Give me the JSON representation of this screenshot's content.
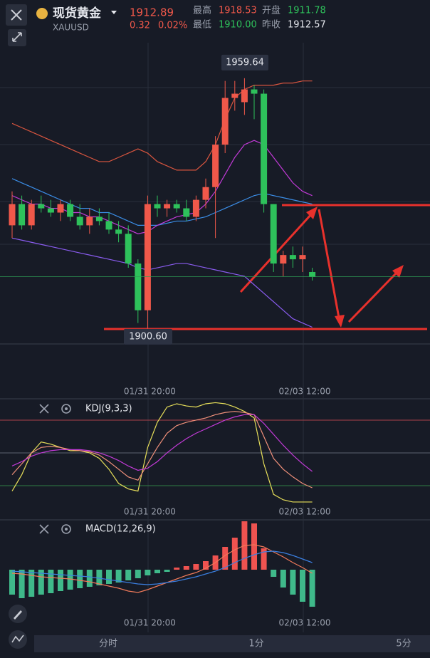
{
  "header": {
    "symbol_name": "现货黄金",
    "symbol_code": "XAUUSD",
    "price": "1912.89",
    "change": "0.32",
    "change_pct": "0.02%",
    "stats": [
      {
        "label": "最高",
        "value": "1918.53",
        "color": "#f0584a"
      },
      {
        "label": "开盘",
        "value": "1911.78",
        "color": "#2ec15b"
      },
      {
        "label": "最低",
        "value": "1910.00",
        "color": "#2ec15b"
      },
      {
        "label": "昨收",
        "value": "1912.57",
        "color": "#e6e8ee"
      }
    ]
  },
  "toolbar": {
    "periods": [
      "分时",
      "1分",
      "5分"
    ]
  },
  "chart_data": [
    {
      "type": "candlestick",
      "up_color": "#f0584a",
      "down_color": "#2ec15b",
      "ylim": [
        1887.5,
        1968
      ],
      "categories": [
        null,
        null,
        null,
        null,
        null,
        null,
        null,
        null,
        null,
        null,
        null,
        null,
        null,
        null,
        "01/31 20:00",
        null,
        null,
        null,
        null,
        null,
        null,
        null,
        null,
        null,
        null,
        null,
        null,
        null,
        null,
        null,
        "02/03 12:00",
        null
      ],
      "open": [
        1925,
        1930,
        1925,
        1930,
        1929,
        1928,
        1930,
        1927,
        1925,
        1927,
        1926,
        1924,
        1923,
        1916,
        1905,
        1930,
        1929,
        1930,
        1929,
        1927,
        1931,
        1934,
        1944,
        1955,
        1954,
        1957,
        1956,
        1930,
        1916,
        1918,
        1917,
        1914
      ],
      "high": [
        1933,
        1932,
        1931,
        1932,
        1931,
        1931,
        1931,
        1930,
        1929,
        1929,
        1928,
        1926,
        1925,
        1917,
        1932,
        1932,
        1931,
        1931,
        1931,
        1932,
        1936,
        1946,
        1959,
        1959,
        1959.64,
        1958,
        1957,
        1930,
        1919,
        1920,
        1920,
        1915
      ],
      "low": [
        1922,
        1924,
        1924,
        1928,
        1927,
        1926,
        1926,
        1924,
        1923,
        1925,
        1923,
        1921,
        1915,
        1902,
        1900.6,
        1927,
        1927,
        1928,
        1926,
        1926,
        1929,
        1922,
        1942,
        1952,
        1951,
        1950,
        1928,
        1914,
        1913,
        1915,
        1914,
        1912
      ],
      "close": [
        1930,
        1925,
        1930,
        1929,
        1928,
        1930,
        1927,
        1925,
        1927,
        1926,
        1924,
        1923,
        1916,
        1905,
        1930,
        1929,
        1930,
        1929,
        1927,
        1931,
        1934,
        1944,
        1955,
        1956,
        1957,
        1956,
        1930,
        1916,
        1918,
        1917,
        1918,
        1912.89
      ],
      "lines": [
        {
          "color": "#d9553f",
          "values": [
            1949,
            1948,
            1947,
            1946,
            1945,
            1944,
            1943,
            1942,
            1941,
            1940,
            1940,
            1941,
            1942,
            1943,
            1942,
            1940,
            1939,
            1938,
            1938,
            1938,
            1940,
            1944,
            1950,
            1955,
            1957,
            1958,
            1958,
            1958,
            1958.5,
            1958.5,
            1959,
            1959
          ]
        },
        {
          "color": "#3b8ee8",
          "values": [
            1936,
            1935,
            1934,
            1933,
            1932,
            1931,
            1930,
            1929,
            1929,
            1928,
            1928,
            1927,
            1926,
            1925,
            1925,
            1925,
            1925.5,
            1926,
            1926,
            1926.5,
            1927,
            1928,
            1929,
            1930,
            1931,
            1932,
            1932.5,
            1932,
            1931.5,
            1931,
            1930.5,
            1930
          ]
        },
        {
          "color": "#8a5cf0",
          "values": [
            1922,
            1921.5,
            1921,
            1920.5,
            1920,
            1919.5,
            1919,
            1918.5,
            1918,
            1917.5,
            1917,
            1916.5,
            1916,
            1915,
            1914.5,
            1915,
            1915.5,
            1916,
            1916,
            1915.5,
            1915,
            1914.5,
            1914,
            1913.5,
            1913,
            1911,
            1909,
            1907,
            1905,
            1903,
            1902,
            1901
          ]
        },
        {
          "color": "#c13ad6",
          "values": [
            1932,
            1931,
            1930,
            1930,
            1929,
            1929,
            1928,
            1928,
            1927,
            1927,
            1926,
            1925,
            1924,
            1923,
            1923.5,
            1925,
            1926,
            1927,
            1927.5,
            1928,
            1930,
            1933,
            1937,
            1941,
            1944,
            1945,
            1944,
            1941,
            1938,
            1935,
            1933,
            1932
          ]
        }
      ],
      "high_label": 1959.64,
      "low_label": {
        "value": 1900.6,
        "label": "1900.60"
      }
    },
    {
      "type": "line",
      "title": "KDJ(9,3,3)",
      "ylim": [
        -9.4,
        97.6
      ],
      "categories": [
        null,
        null,
        null,
        null,
        null,
        null,
        null,
        null,
        null,
        null,
        null,
        null,
        null,
        null,
        "01/31 20:00",
        null,
        null,
        null,
        null,
        null,
        null,
        null,
        null,
        null,
        null,
        null,
        null,
        null,
        null,
        null,
        "02/03 12:00",
        null
      ],
      "hlines": [
        {
          "value": 80,
          "color": "#a8414b"
        },
        {
          "value": 50,
          "color": "#5d6370"
        },
        {
          "value": 20,
          "color": "#2f7d44"
        }
      ],
      "series": [
        {
          "color": "#e8e05a",
          "values": [
            15,
            30,
            50,
            60,
            58,
            55,
            52,
            52,
            50,
            45,
            35,
            22,
            17,
            15,
            55,
            78,
            92,
            95,
            93,
            92,
            95,
            96,
            95,
            92,
            88,
            82,
            40,
            12,
            7,
            5,
            5,
            5
          ]
        },
        {
          "color": "#f0907a",
          "values": [
            30,
            40,
            50,
            55,
            56,
            55,
            53,
            52,
            51,
            48,
            42,
            35,
            28,
            25,
            40,
            55,
            68,
            75,
            78,
            80,
            82,
            85,
            87,
            88,
            87,
            85,
            65,
            45,
            35,
            28,
            22,
            18
          ]
        },
        {
          "color": "#c13ad6",
          "values": [
            38,
            42,
            47,
            50,
            52,
            53,
            53,
            53,
            52,
            50,
            47,
            43,
            38,
            34,
            36,
            42,
            50,
            57,
            63,
            68,
            72,
            76,
            80,
            83,
            85,
            85,
            77,
            67,
            57,
            48,
            40,
            33
          ]
        }
      ]
    },
    {
      "type": "bar",
      "title": "MACD(12,26,9)",
      "ylim": [
        -6,
        6.5
      ],
      "up_color": "#ef5350",
      "down_color": "#3fb98a",
      "categories": [
        null,
        null,
        null,
        null,
        null,
        null,
        null,
        null,
        null,
        null,
        null,
        null,
        null,
        null,
        "01/31 20:00",
        null,
        null,
        null,
        null,
        null,
        null,
        null,
        null,
        null,
        null,
        null,
        null,
        null,
        null,
        null,
        "02/03 12:00",
        null
      ],
      "values": [
        -3.5,
        -4,
        -3.8,
        -3.5,
        -3.3,
        -3,
        -2.8,
        -2.6,
        -2.4,
        -2.2,
        -2,
        -1.8,
        -1.5,
        -1.2,
        -0.8,
        -0.5,
        -0.3,
        0.3,
        0.5,
        0.8,
        1.2,
        2,
        3.2,
        4.5,
        6.8,
        6.5,
        3,
        -1,
        -2.5,
        -3.5,
        -4.5,
        -5.2
      ],
      "lines": [
        {
          "color": "#f07a5a",
          "values": [
            -0.5,
            -0.6,
            -0.8,
            -1,
            -1.1,
            -1.2,
            -1.3,
            -1.5,
            -1.7,
            -2,
            -2.3,
            -2.6,
            -3,
            -3.2,
            -2.8,
            -2.3,
            -1.8,
            -1.3,
            -0.8,
            -0.4,
            0.2,
            1,
            2,
            2.8,
            3.4,
            3.5,
            3.2,
            2.5,
            1.8,
            1,
            0.3,
            -0.5
          ]
        },
        {
          "color": "#3b7fe0",
          "values": [
            -0.2,
            -0.3,
            -0.4,
            -0.5,
            -0.6,
            -0.7,
            -0.8,
            -0.9,
            -1,
            -1.2,
            -1.4,
            -1.6,
            -1.8,
            -2,
            -2.1,
            -2,
            -1.8,
            -1.6,
            -1.3,
            -1,
            -0.6,
            -0.2,
            0.3,
            1,
            1.6,
            2.1,
            2.5,
            2.6,
            2.4,
            2,
            1.5,
            1
          ]
        }
      ]
    }
  ]
}
